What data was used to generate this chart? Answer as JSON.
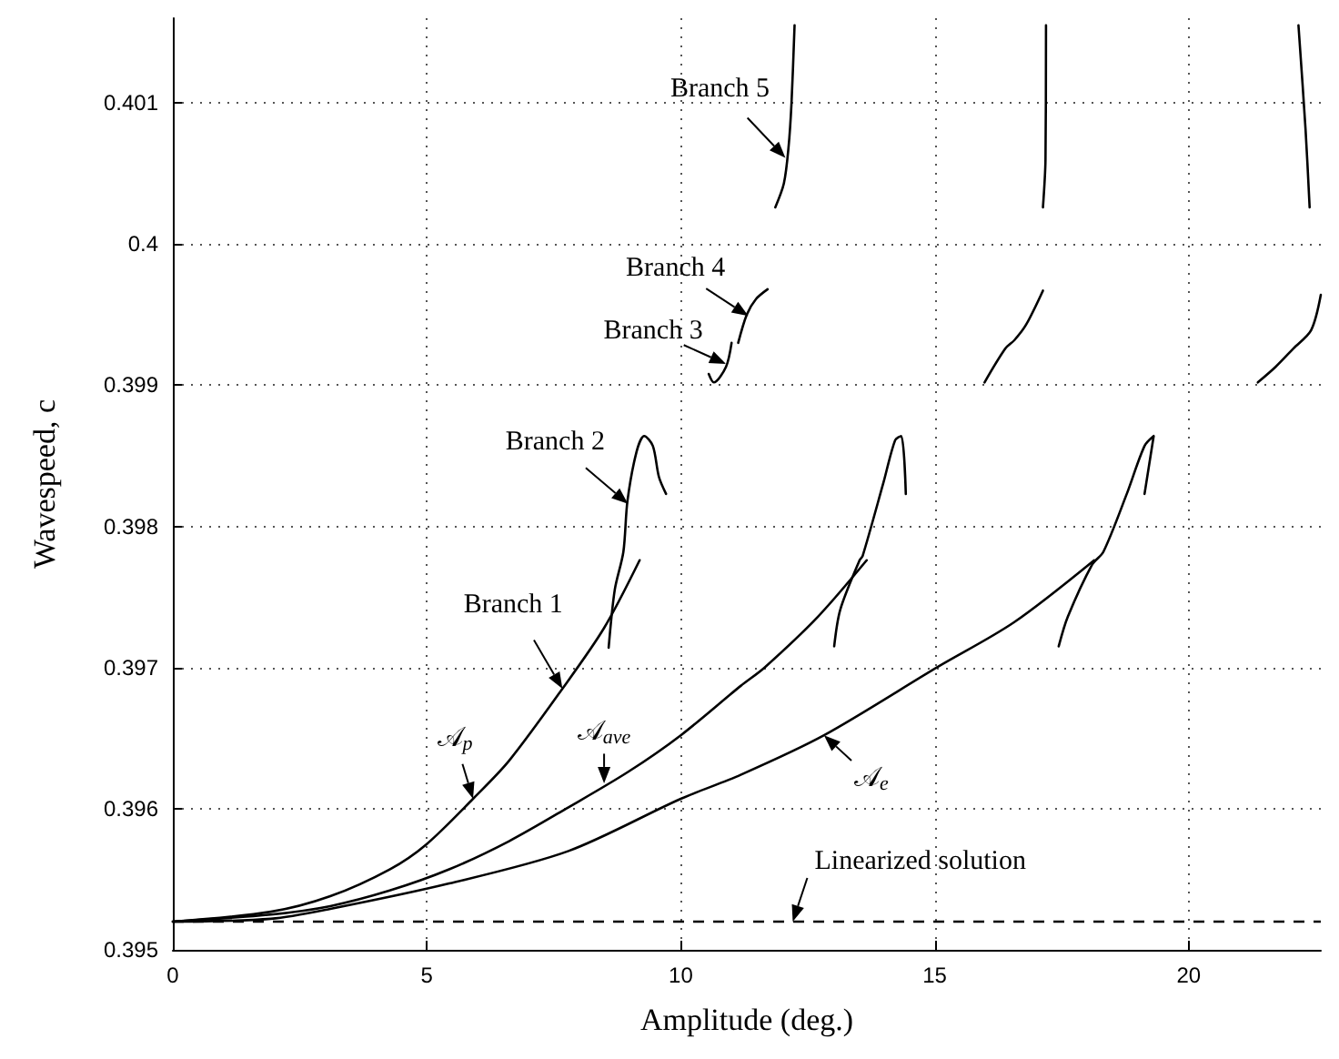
{
  "chart_data": {
    "type": "line",
    "xlabel": "Amplitude (deg.)",
    "ylabel": "Wavespeed, c",
    "xlim": [
      0,
      22.6
    ],
    "xticks": [
      0,
      5,
      10,
      15,
      20
    ],
    "ylim": [
      0.395,
      0.4016
    ],
    "yticks": [
      0.395,
      0.396,
      0.397,
      0.398,
      0.399,
      0.4,
      0.401
    ],
    "grid": true,
    "marker": "none",
    "line_style": "solid",
    "series": [
      {
        "color": "#000000",
        "x": [
          0,
          1.93,
          3.1,
          4.27,
          5.0,
          5.91,
          6.62,
          7.67,
          8.49,
          9.19
        ],
        "values": [
          0.3952,
          0.39527,
          0.39538,
          0.39557,
          0.39575,
          0.39607,
          0.39634,
          0.39685,
          0.39728,
          0.39776
        ]
      },
      {
        "color": "#000000",
        "x": [
          0,
          1.93,
          3.1,
          4.27,
          5.44,
          6.62,
          7.79,
          8.96,
          10.0,
          11.18,
          11.65,
          12.7,
          13.66
        ],
        "values": [
          0.3952,
          0.39525,
          0.39531,
          0.39542,
          0.39557,
          0.39577,
          0.39601,
          0.39626,
          0.39652,
          0.39687,
          0.397,
          0.39736,
          0.39776
        ]
      },
      {
        "color": "#000000",
        "x": [
          0,
          1.93,
          3.1,
          5.44,
          7.79,
          10.0,
          11.18,
          12.82,
          15.04,
          16.56,
          18.14
        ],
        "values": [
          0.3952,
          0.39522,
          0.39529,
          0.39547,
          0.3957,
          0.39607,
          0.39624,
          0.39652,
          0.397,
          0.39732,
          0.39776
        ]
      },
      {
        "color": "#000000",
        "x": [
          8.58,
          8.7,
          8.87,
          8.95,
          9.13,
          9.28,
          9.45,
          9.57,
          9.71
        ],
        "values": [
          0.39714,
          0.39755,
          0.39782,
          0.39818,
          0.39853,
          0.39864,
          0.39857,
          0.39835,
          0.39823
        ]
      },
      {
        "color": "#000000",
        "x": [
          13.02,
          13.14,
          13.52,
          13.58,
          13.99,
          14.22,
          14.34,
          14.43
        ],
        "values": [
          0.39715,
          0.39741,
          0.39776,
          0.39779,
          0.39831,
          0.39861,
          0.39864,
          0.39823
        ]
      },
      {
        "color": "#000000",
        "x": [
          17.44,
          17.62,
          18.1,
          18.32,
          18.78,
          19.13,
          19.31,
          19.13
        ],
        "values": [
          0.39715,
          0.39736,
          0.39773,
          0.39782,
          0.39823,
          0.39857,
          0.39864,
          0.39823
        ]
      },
      {
        "color": "#000000",
        "x": [
          10.55,
          10.65,
          10.89,
          11.0
        ],
        "values": [
          0.39908,
          0.39902,
          0.39913,
          0.3993
        ]
      },
      {
        "color": "#000000",
        "x": [
          11.13,
          11.3,
          11.48,
          11.71
        ],
        "values": [
          0.3993,
          0.3995,
          0.39961,
          0.39968
        ]
      },
      {
        "color": "#000000",
        "x": [
          15.98,
          16.39,
          16.57,
          16.8,
          17.13
        ],
        "values": [
          0.39902,
          0.39926,
          0.39932,
          0.39943,
          0.39967
        ]
      },
      {
        "color": "#000000",
        "x": [
          21.36,
          21.71,
          22.06,
          22.41,
          22.6
        ],
        "values": [
          0.39902,
          0.39913,
          0.39926,
          0.39939,
          0.39964
        ]
      },
      {
        "color": "#000000",
        "x": [
          11.86,
          12.03,
          12.12,
          12.18,
          12.24
        ],
        "values": [
          0.40026,
          0.40043,
          0.40068,
          0.401,
          0.40155
        ]
      },
      {
        "color": "#000000",
        "x": [
          17.13,
          17.18,
          17.19
        ],
        "values": [
          0.40026,
          0.4006,
          0.40155
        ]
      },
      {
        "color": "#000000",
        "x": [
          22.16,
          22.3,
          22.38
        ],
        "values": [
          0.40155,
          0.40081,
          0.40026
        ]
      }
    ],
    "ref_lines": [
      {
        "axis": "y",
        "value": 0.3952,
        "label": "Linearized solution",
        "color": "#000000",
        "line_style": "dashed"
      }
    ],
    "annotations": [
      {
        "text": "Branch 1",
        "x": 7.67,
        "y": 0.39685
      },
      {
        "text": "𝒜$_{p}$",
        "x": 5.91,
        "y": 0.39607
      },
      {
        "text": "𝒜$_{ave}$",
        "x": 8.49,
        "y": 0.39618
      },
      {
        "text": "𝒜$_{e}$",
        "x": 12.82,
        "y": 0.39652
      },
      {
        "text": "Branch 2",
        "x": 8.96,
        "y": 0.39816
      },
      {
        "text": "Branch 3",
        "x": 10.89,
        "y": 0.39915
      },
      {
        "text": "Branch 4",
        "x": 11.33,
        "y": 0.39949
      },
      {
        "text": "Branch 5",
        "x": 12.06,
        "y": 0.40061
      }
    ]
  }
}
